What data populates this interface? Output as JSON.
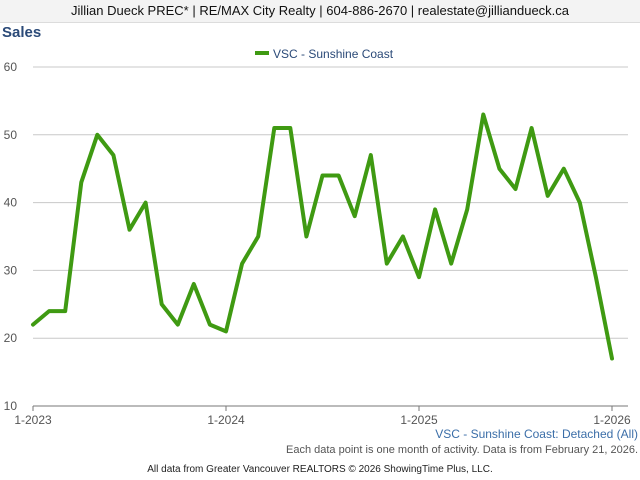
{
  "header": {
    "text": "Jillian Dueck PREC* | RE/MAX City Realty | 604-886-2670 | realestate@jilliandueck.ca"
  },
  "chart_data": {
    "type": "line",
    "title": "Sales",
    "subtitle": "VSC - Sunshine Coast: Detached (All)",
    "x_ticks": [
      "1-2023",
      "1-2024",
      "1-2025",
      "1-2026"
    ],
    "ylim": [
      10,
      60
    ],
    "y_ticks": [
      10,
      20,
      30,
      40,
      50,
      60
    ],
    "grid": true,
    "legend_position": "top-center",
    "series": [
      {
        "name": "VSC - Sunshine Coast",
        "color": "#3f9a12",
        "values": [
          22,
          24,
          24,
          43,
          50,
          47,
          36,
          40,
          25,
          22,
          28,
          22,
          21,
          31,
          35,
          51,
          51,
          35,
          44,
          44,
          38,
          47,
          31,
          35,
          29,
          39,
          31,
          39,
          53,
          45,
          42,
          51,
          41,
          45,
          40,
          29,
          17
        ]
      }
    ]
  },
  "notes": {
    "data_note": "Each data point is one month of activity. Data is from February 21, 2026.",
    "source": "All data from Greater Vancouver REALTORS © 2026 ShowingTime Plus, LLC."
  }
}
